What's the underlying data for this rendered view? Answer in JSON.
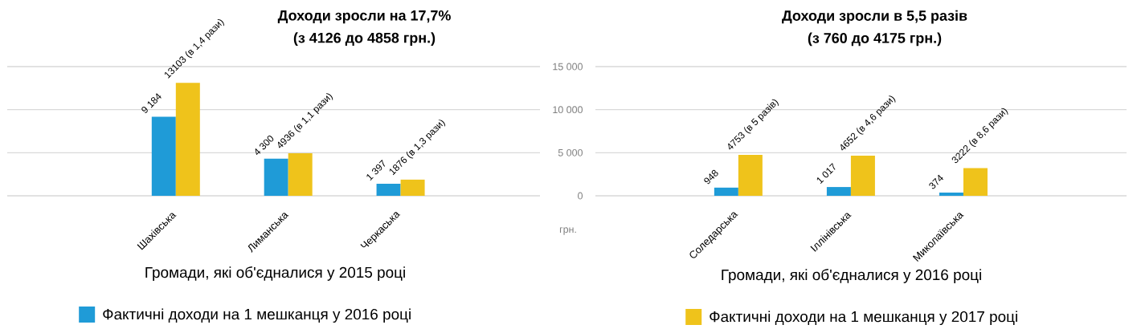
{
  "chart_data": [
    {
      "type": "bar",
      "title": "Доходи зросли на 17,7%",
      "subtitle": "(з 4126 до 4858 грн.)",
      "xlabel": "Громади, які об'єдналися у 2015 році",
      "categories": [
        "Шахівська",
        "Лиманська",
        "Черкаська"
      ],
      "series": [
        {
          "name": "Фактичні доходи на 1 мешканця у 2016 році",
          "color": "#1f9bd7",
          "values": [
            9184,
            4300,
            1397
          ],
          "value_labels": [
            "9 184",
            "4 300",
            "1 397"
          ]
        },
        {
          "color": "#efc31b",
          "values": [
            13103,
            4936,
            1876
          ],
          "value_labels": [
            "13103 (в 1,4 рази)",
            "4936 (в 1,1 рази)",
            "1876 (в 1,3 рази)"
          ]
        }
      ],
      "ylim": [
        0,
        15000
      ],
      "yticks": [
        0,
        5000,
        10000,
        15000
      ],
      "grid": "y",
      "tick_labels": "x",
      "legend": "bottom"
    },
    {
      "type": "bar",
      "title": "Доходи зросли в 5,5 разів",
      "subtitle": "(з 760 до 4175 грн.)",
      "xlabel": "Громади, які об'єдналися у 2016 році",
      "ylabel": "грн.",
      "categories": [
        "Соледарська",
        "Іллінівська",
        "Миколаївська"
      ],
      "series": [
        {
          "color": "#1f9bd7",
          "values": [
            948,
            1017,
            374
          ],
          "value_labels": [
            "948",
            "1 017",
            "374"
          ]
        },
        {
          "name": "Фактичні доходи на 1 мешканця у 2017 році",
          "color": "#efc31b",
          "values": [
            4753,
            4652,
            3222
          ],
          "value_labels": [
            "4753 (в 5 разів)",
            "4652 (в 4,6 рази)",
            "3222 (в 8,6 рази)"
          ]
        }
      ],
      "ylim": [
        0,
        15000
      ],
      "yticks": [
        {
          "value": 0,
          "label": "0"
        },
        {
          "value": 5000,
          "label": "5 000"
        },
        {
          "value": 10000,
          "label": "10 000"
        },
        {
          "value": 15000,
          "label": "15 000"
        }
      ],
      "grid": "y",
      "legend": "bottom"
    }
  ]
}
